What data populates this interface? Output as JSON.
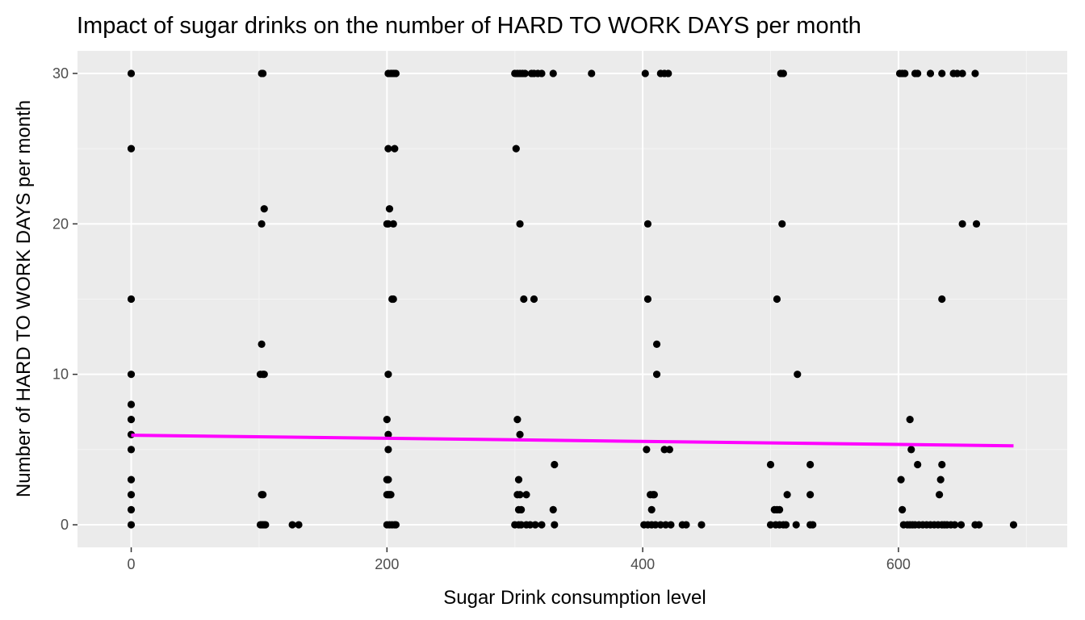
{
  "colors": {
    "panel_background": "#EBEBEB",
    "grid_major": "#FFFFFF",
    "grid_minor": "#F5F5F5",
    "points": "#000000",
    "trend_line": "#FF00FF",
    "tick_text": "#4D4D4D"
  },
  "chart_data": {
    "type": "scatter",
    "title": "Impact of sugar drinks on the number of HARD TO WORK DAYS per month",
    "xlabel": "Sugar Drink consumption level",
    "ylabel": "Number of HARD TO WORK DAYS per month",
    "xlim": [
      -42,
      732
    ],
    "ylim": [
      -1.5,
      31.5
    ],
    "x_ticks": [
      0,
      200,
      400,
      600
    ],
    "y_ticks": [
      0,
      10,
      20,
      30
    ],
    "x_tick_labels": [
      "0",
      "200",
      "400",
      "600"
    ],
    "y_tick_labels": [
      "0",
      "10",
      "20",
      "30"
    ],
    "grid": true,
    "legend": "none",
    "points": [
      [
        0,
        30
      ],
      [
        0,
        25
      ],
      [
        0,
        15
      ],
      [
        0,
        10
      ],
      [
        0,
        8
      ],
      [
        0,
        7
      ],
      [
        0,
        6
      ],
      [
        0,
        5
      ],
      [
        0,
        3
      ],
      [
        0,
        2
      ],
      [
        0,
        1
      ],
      [
        0,
        0
      ],
      [
        102,
        30
      ],
      [
        103,
        30
      ],
      [
        104,
        21
      ],
      [
        102,
        20
      ],
      [
        102,
        12
      ],
      [
        101,
        10
      ],
      [
        103,
        10
      ],
      [
        104,
        10
      ],
      [
        102,
        2
      ],
      [
        103,
        2
      ],
      [
        101,
        0
      ],
      [
        102,
        0
      ],
      [
        103,
        0
      ],
      [
        104,
        0
      ],
      [
        105,
        0
      ],
      [
        126,
        0
      ],
      [
        131,
        0
      ],
      [
        201,
        30
      ],
      [
        203,
        30
      ],
      [
        204,
        30
      ],
      [
        205,
        30
      ],
      [
        206,
        30
      ],
      [
        207,
        30
      ],
      [
        201,
        25
      ],
      [
        206,
        25
      ],
      [
        202,
        21
      ],
      [
        200,
        20
      ],
      [
        201,
        20
      ],
      [
        205,
        20
      ],
      [
        204,
        15
      ],
      [
        205,
        15
      ],
      [
        201,
        10
      ],
      [
        200,
        7
      ],
      [
        201,
        6
      ],
      [
        201,
        5
      ],
      [
        200,
        3
      ],
      [
        201,
        3
      ],
      [
        200,
        2
      ],
      [
        201,
        2
      ],
      [
        202,
        2
      ],
      [
        203,
        2
      ],
      [
        200,
        0
      ],
      [
        202,
        0
      ],
      [
        204,
        0
      ],
      [
        206,
        0
      ],
      [
        207,
        0
      ],
      [
        300,
        30
      ],
      [
        302,
        30
      ],
      [
        304,
        30
      ],
      [
        306,
        30
      ],
      [
        308,
        30
      ],
      [
        313,
        30
      ],
      [
        315,
        30
      ],
      [
        318,
        30
      ],
      [
        321,
        30
      ],
      [
        330,
        30
      ],
      [
        360,
        30
      ],
      [
        301,
        25
      ],
      [
        304,
        20
      ],
      [
        307,
        15
      ],
      [
        315,
        15
      ],
      [
        302,
        7
      ],
      [
        304,
        6
      ],
      [
        331,
        4
      ],
      [
        303,
        3
      ],
      [
        302,
        2
      ],
      [
        304,
        2
      ],
      [
        309,
        2
      ],
      [
        303,
        1
      ],
      [
        305,
        1
      ],
      [
        330,
        1
      ],
      [
        300,
        0
      ],
      [
        303,
        0
      ],
      [
        305,
        0
      ],
      [
        309,
        0
      ],
      [
        312,
        0
      ],
      [
        316,
        0
      ],
      [
        321,
        0
      ],
      [
        331,
        0
      ],
      [
        402,
        30
      ],
      [
        414,
        30
      ],
      [
        417,
        30
      ],
      [
        420,
        30
      ],
      [
        404,
        20
      ],
      [
        404,
        15
      ],
      [
        411,
        12
      ],
      [
        411,
        10
      ],
      [
        403,
        5
      ],
      [
        417,
        5
      ],
      [
        421,
        5
      ],
      [
        406,
        2
      ],
      [
        408,
        2
      ],
      [
        409,
        2
      ],
      [
        407,
        1
      ],
      [
        401,
        0
      ],
      [
        404,
        0
      ],
      [
        407,
        0
      ],
      [
        410,
        0
      ],
      [
        414,
        0
      ],
      [
        418,
        0
      ],
      [
        422,
        0
      ],
      [
        431,
        0
      ],
      [
        434,
        0
      ],
      [
        446,
        0
      ],
      [
        508,
        30
      ],
      [
        510,
        30
      ],
      [
        509,
        20
      ],
      [
        505,
        15
      ],
      [
        521,
        10
      ],
      [
        500,
        4
      ],
      [
        531,
        4
      ],
      [
        503,
        1
      ],
      [
        505,
        1
      ],
      [
        507,
        1
      ],
      [
        513,
        2
      ],
      [
        531,
        2
      ],
      [
        500,
        0
      ],
      [
        504,
        0
      ],
      [
        507,
        0
      ],
      [
        510,
        0
      ],
      [
        512,
        0
      ],
      [
        520,
        0
      ],
      [
        531,
        0
      ],
      [
        533,
        0
      ],
      [
        601,
        30
      ],
      [
        603,
        30
      ],
      [
        605,
        30
      ],
      [
        613,
        30
      ],
      [
        615,
        30
      ],
      [
        625,
        30
      ],
      [
        634,
        30
      ],
      [
        643,
        30
      ],
      [
        646,
        30
      ],
      [
        650,
        30
      ],
      [
        660,
        30
      ],
      [
        650,
        20
      ],
      [
        661,
        20
      ],
      [
        634,
        15
      ],
      [
        609,
        7
      ],
      [
        610,
        5
      ],
      [
        615,
        4
      ],
      [
        634,
        4
      ],
      [
        602,
        3
      ],
      [
        633,
        3
      ],
      [
        632,
        2
      ],
      [
        603,
        1
      ],
      [
        604,
        0
      ],
      [
        607,
        0
      ],
      [
        609,
        0
      ],
      [
        611,
        0
      ],
      [
        613,
        0
      ],
      [
        616,
        0
      ],
      [
        619,
        0
      ],
      [
        622,
        0
      ],
      [
        625,
        0
      ],
      [
        628,
        0
      ],
      [
        631,
        0
      ],
      [
        634,
        0
      ],
      [
        636,
        0
      ],
      [
        638,
        0
      ],
      [
        641,
        0
      ],
      [
        644,
        0
      ],
      [
        649,
        0
      ],
      [
        660,
        0
      ],
      [
        663,
        0
      ],
      [
        690,
        0
      ]
    ],
    "trend_line": {
      "x": [
        0,
        690
      ],
      "y": [
        5.95,
        5.25
      ]
    }
  }
}
